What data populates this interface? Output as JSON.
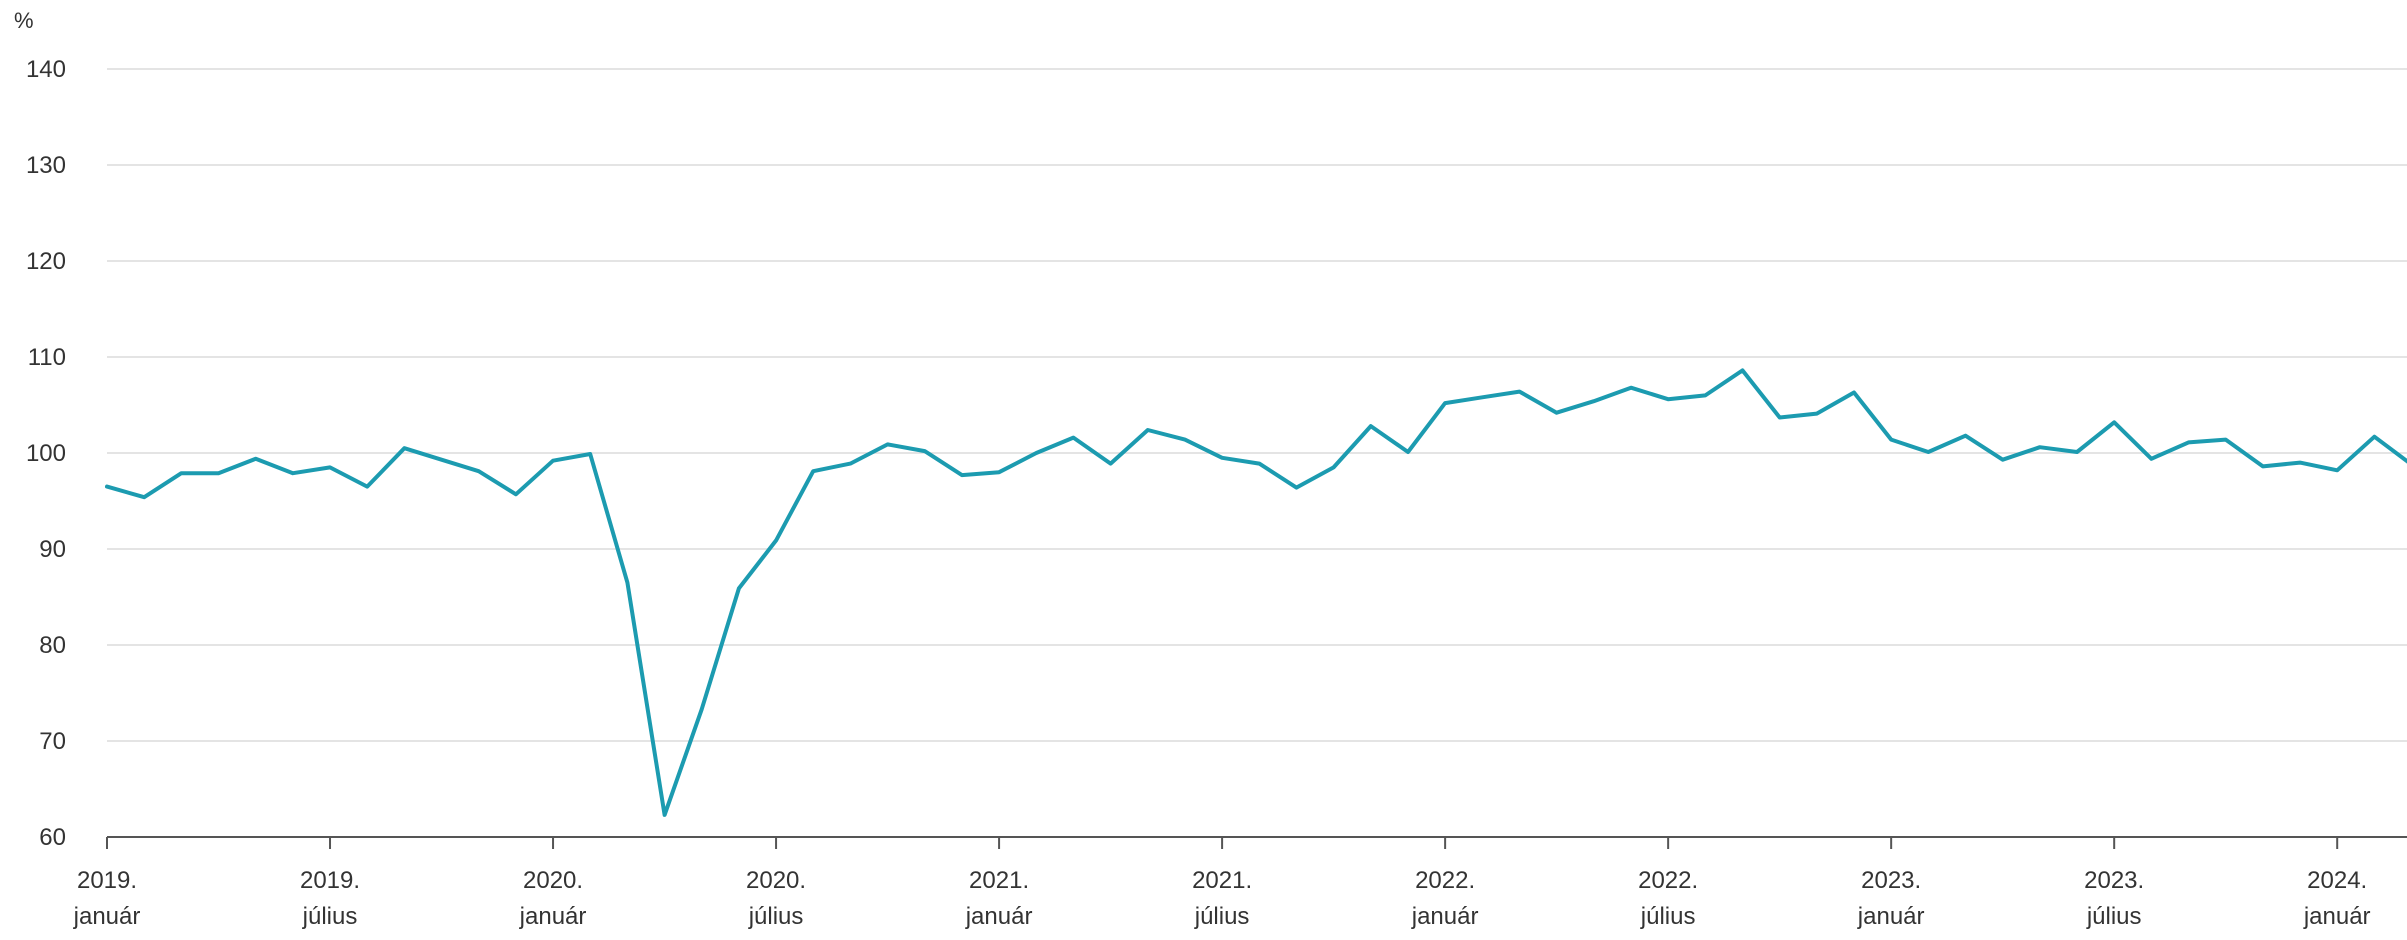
{
  "chart_data": {
    "type": "line",
    "title": "",
    "xlabel": "",
    "ylabel": "%",
    "ylim": [
      60,
      140
    ],
    "yticks": [
      "60",
      "70",
      "80",
      "90",
      "100",
      "110",
      "120",
      "130",
      "140"
    ],
    "grid": true,
    "x": [
      "2019-01",
      "2019-02",
      "2019-03",
      "2019-04",
      "2019-05",
      "2019-06",
      "2019-07",
      "2019-08",
      "2019-09",
      "2019-10",
      "2019-11",
      "2019-12",
      "2020-01",
      "2020-02",
      "2020-03",
      "2020-04",
      "2020-05",
      "2020-06",
      "2020-07",
      "2020-08",
      "2020-09",
      "2020-10",
      "2020-11",
      "2020-12",
      "2021-01",
      "2021-02",
      "2021-03",
      "2021-04",
      "2021-05",
      "2021-06",
      "2021-07",
      "2021-08",
      "2021-09",
      "2021-10",
      "2021-11",
      "2021-12",
      "2022-01",
      "2022-02",
      "2022-03",
      "2022-04",
      "2022-05",
      "2022-06",
      "2022-07",
      "2022-08",
      "2022-09",
      "2022-10",
      "2022-11",
      "2022-12",
      "2023-01",
      "2023-02",
      "2023-03",
      "2023-04",
      "2023-05",
      "2023-06",
      "2023-07",
      "2023-08",
      "2023-09",
      "2023-10",
      "2023-11",
      "2023-12",
      "2024-01",
      "2024-02",
      "2024-03"
    ],
    "xtick_labels": [
      {
        "year": "2019.",
        "month": "január"
      },
      {
        "year": "2019.",
        "month": "július"
      },
      {
        "year": "2020.",
        "month": "január"
      },
      {
        "year": "2020.",
        "month": "július"
      },
      {
        "year": "2021.",
        "month": "január"
      },
      {
        "year": "2021.",
        "month": "július"
      },
      {
        "year": "2022.",
        "month": "január"
      },
      {
        "year": "2022.",
        "month": "július"
      },
      {
        "year": "2023.",
        "month": "január"
      },
      {
        "year": "2023.",
        "month": "július"
      },
      {
        "year": "2024.",
        "month": "január"
      }
    ],
    "series": [
      {
        "color": "#1c9bb0",
        "values": [
          96.5,
          95.4,
          97.9,
          97.9,
          99.4,
          97.9,
          98.5,
          96.5,
          100.5,
          99.3,
          98.1,
          95.7,
          99.2,
          99.9,
          86.5,
          62.3,
          73.3,
          85.9,
          90.9,
          98.1,
          98.9,
          100.9,
          100.2,
          97.7,
          98.0,
          100.0,
          101.6,
          98.9,
          102.4,
          101.4,
          99.5,
          98.9,
          96.4,
          98.5,
          102.8,
          100.1,
          105.2,
          105.8,
          106.4,
          104.2,
          105.4,
          106.8,
          105.6,
          106.0,
          108.6,
          103.7,
          104.1,
          106.3,
          101.4,
          100.1,
          101.8,
          99.3,
          100.6,
          100.1,
          103.2,
          99.4,
          101.1,
          101.4,
          98.6,
          99.0,
          98.2,
          101.7,
          98.8
        ]
      }
    ]
  }
}
